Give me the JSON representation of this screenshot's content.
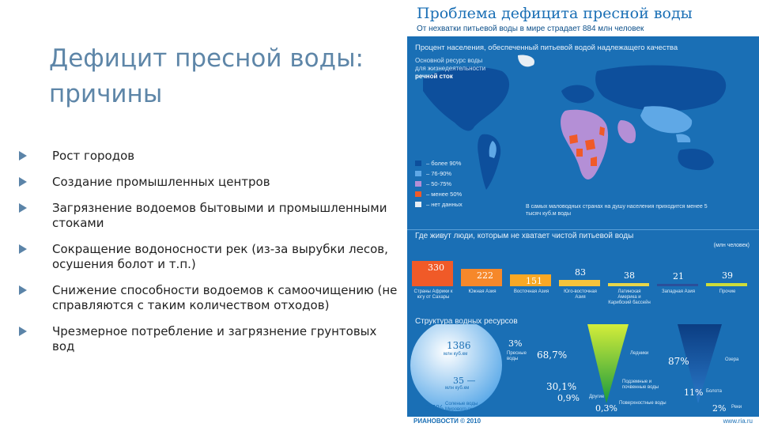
{
  "slide": {
    "title": "Дефицит пресной воды: причины",
    "bullets": [
      "Рост городов",
      "Создание  промышленных центров",
      "Загрязнение водоемов бытовыми и промышленными стоками",
      "Сокращение водоносности рек (из-за вырубки лесов, осушения болот и т.п.)",
      "Снижение способности водоемов к самоочищению (не справляются с таким количеством отходов)",
      "Чрезмерное потребление и загрязнение грунтовых вод"
    ]
  },
  "infographic": {
    "title": "Проблема дефицита пресной воды",
    "subtitle": "От нехватки питьевой воды в мире страдает 884 млн человек",
    "map_caption": "Процент населения, обеспеченный питьевой водой надлежащего качества",
    "map_note_1": "Основной ресурс воды",
    "map_note_2": "для жизнедеятельности",
    "map_note_3": "речной сток",
    "legend": [
      {
        "label": "– более 90%",
        "color": "#0d4f9c"
      },
      {
        "label": "– 76-90%",
        "color": "#5fa8e6"
      },
      {
        "label": "– 50-75%",
        "color": "#b48fd6"
      },
      {
        "label": "– менее 50%",
        "color": "#f05a28"
      },
      {
        "label": "– нет данных",
        "color": "#e8eef4"
      }
    ],
    "small_note": "В самых маловодных странах на душу населения приходится менее 5 тысяч куб.м воды",
    "bars_title": "Где живут люди, которым не хватает чистой питьевой воды",
    "unit_note": "(млн человек)",
    "bar_chart": {
      "values": [
        330,
        222,
        151,
        83,
        38,
        21,
        39
      ],
      "labels": [
        "Страны Африки к югу от Сахары",
        "Южная Азия",
        "Восточная Азия",
        "Юго-восточная Азия",
        "Латинская Америка и Карибский бассейн",
        "Западная Азия",
        "Прочие"
      ],
      "colors": [
        "#f05a28",
        "#f6882a",
        "#f9a825",
        "#f6c33b",
        "#e8d64a",
        "#2b4f9a",
        "#cddc39"
      ]
    },
    "structure_title": "Структура водных ресурсов",
    "structure": {
      "circle_value": "1386",
      "circle_unit": "млн куб.км",
      "fresh_value": "35 —",
      "fresh_unit": "млн куб.км",
      "salt_pct": "97%",
      "salt_label": "Соленые воды Мирового океана",
      "fresh_pct": "3%",
      "fresh_label": "Пресные воды",
      "glaciers_pct": "68,7%",
      "glaciers_label": "Ледники",
      "ground_pct": "30,1%",
      "ground_label": "Подземные и почвенные воды",
      "other_pct": "0,9%",
      "other_label": "Другие",
      "surface_pct": "0,3%",
      "surface_label": "Поверхностные воды",
      "lakes_pct": "87%",
      "lakes_label": "Озера",
      "swamps_pct": "11%",
      "swamps_label": "Болота",
      "rivers_pct": "2%",
      "rivers_label": "Реки"
    },
    "footer_left": "РИАНОВОСТИ © 2010",
    "footer_right": "www.ria.ru"
  }
}
